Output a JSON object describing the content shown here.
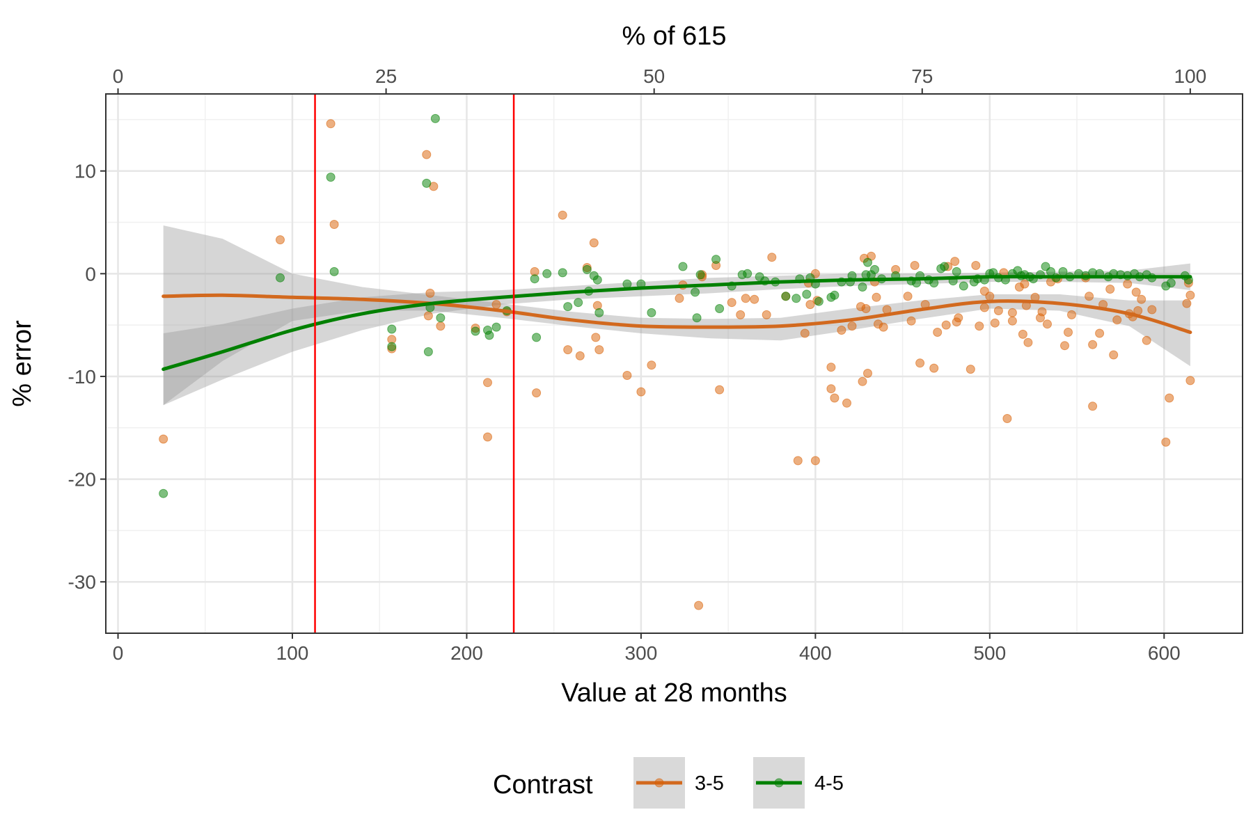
{
  "chart_data": {
    "type": "scatter",
    "xlabel": "Value at 28 months",
    "x2label": "% of 615",
    "ylabel": "% error",
    "xlim": [
      -7,
      645
    ],
    "ylim": [
      -35,
      17.5
    ],
    "x_ticks": [
      0,
      100,
      200,
      300,
      400,
      500,
      600
    ],
    "x_tick_labels": [
      "0",
      "100",
      "200",
      "300",
      "400",
      "500",
      "600"
    ],
    "x2_ticks": [
      0,
      25,
      50,
      75,
      100
    ],
    "x2_tick_labels": [
      "0",
      "25",
      "50",
      "75",
      "100"
    ],
    "x2_max_value": 615,
    "y_ticks": [
      10,
      0,
      -10,
      -20,
      -30
    ],
    "y_tick_labels": [
      "10",
      "0",
      "-10",
      "-20",
      "-30"
    ],
    "grid": true,
    "vlines": [
      113,
      227
    ],
    "vline_color": "#ff0000",
    "legend": {
      "title": "Contrast",
      "position": "bottom"
    },
    "series": [
      {
        "name": "3-5",
        "color": "#d95f02",
        "points": [
          [
            26,
            -16.1
          ],
          [
            93,
            3.3
          ],
          [
            122,
            14.6
          ],
          [
            124,
            4.8
          ],
          [
            157,
            -6.4
          ],
          [
            157,
            -7.3
          ],
          [
            177,
            11.6
          ],
          [
            178,
            -4.1
          ],
          [
            179,
            -1.9
          ],
          [
            181,
            8.5
          ],
          [
            185,
            -5.1
          ],
          [
            205,
            -5.3
          ],
          [
            212,
            -10.6
          ],
          [
            212,
            -15.9
          ],
          [
            217,
            -3.0
          ],
          [
            223,
            -3.7
          ],
          [
            239,
            0.2
          ],
          [
            240,
            -11.6
          ],
          [
            255,
            5.7
          ],
          [
            258,
            -7.4
          ],
          [
            265,
            -8.0
          ],
          [
            269,
            0.6
          ],
          [
            273,
            3.0
          ],
          [
            274,
            -6.2
          ],
          [
            275,
            -3.1
          ],
          [
            276,
            -7.4
          ],
          [
            292,
            -9.9
          ],
          [
            300,
            -11.5
          ],
          [
            306,
            -8.9
          ],
          [
            322,
            -2.4
          ],
          [
            324,
            -1.1
          ],
          [
            333,
            -32.3
          ],
          [
            335,
            -0.3
          ],
          [
            335,
            -0.1
          ],
          [
            343,
            0.8
          ],
          [
            345,
            -11.3
          ],
          [
            352,
            -2.8
          ],
          [
            357,
            -4.0
          ],
          [
            360,
            -2.4
          ],
          [
            365,
            -2.5
          ],
          [
            372,
            -4.0
          ],
          [
            375,
            1.6
          ],
          [
            383,
            -2.2
          ],
          [
            390,
            -18.2
          ],
          [
            394,
            -5.8
          ],
          [
            396,
            -0.9
          ],
          [
            397,
            -3.0
          ],
          [
            400,
            -18.2
          ],
          [
            400,
            0.0
          ],
          [
            401,
            -2.6
          ],
          [
            409,
            -9.1
          ],
          [
            409,
            -11.2
          ],
          [
            411,
            -12.1
          ],
          [
            415,
            -5.5
          ],
          [
            418,
            -12.6
          ],
          [
            421,
            -5.1
          ],
          [
            426,
            -3.2
          ],
          [
            427,
            -10.5
          ],
          [
            428,
            1.5
          ],
          [
            429,
            -3.4
          ],
          [
            430,
            -9.7
          ],
          [
            432,
            1.7
          ],
          [
            434,
            -0.8
          ],
          [
            435,
            -2.3
          ],
          [
            436,
            -4.9
          ],
          [
            439,
            -5.2
          ],
          [
            441,
            -3.5
          ],
          [
            446,
            0.4
          ],
          [
            453,
            -2.2
          ],
          [
            455,
            -4.6
          ],
          [
            457,
            0.8
          ],
          [
            460,
            -8.7
          ],
          [
            463,
            -3.0
          ],
          [
            468,
            -9.2
          ],
          [
            470,
            -5.7
          ],
          [
            475,
            -5.0
          ],
          [
            476,
            0.7
          ],
          [
            480,
            1.2
          ],
          [
            481,
            -4.7
          ],
          [
            482,
            -4.3
          ],
          [
            489,
            -9.3
          ],
          [
            492,
            0.8
          ],
          [
            494,
            -5.1
          ],
          [
            497,
            -1.7
          ],
          [
            497,
            -3.3
          ],
          [
            500,
            -2.2
          ],
          [
            503,
            -4.8
          ],
          [
            505,
            -3.6
          ],
          [
            508,
            0.1
          ],
          [
            510,
            -14.1
          ],
          [
            513,
            -4.6
          ],
          [
            513,
            -3.8
          ],
          [
            517,
            -1.3
          ],
          [
            519,
            -5.9
          ],
          [
            520,
            -1.0
          ],
          [
            521,
            -3.1
          ],
          [
            522,
            -6.7
          ],
          [
            526,
            -2.3
          ],
          [
            529,
            -4.3
          ],
          [
            530,
            -3.7
          ],
          [
            533,
            -4.9
          ],
          [
            535,
            -0.8
          ],
          [
            539,
            -0.5
          ],
          [
            543,
            -7.0
          ],
          [
            545,
            -5.7
          ],
          [
            547,
            -4.0
          ],
          [
            555,
            -0.4
          ],
          [
            557,
            -2.2
          ],
          [
            559,
            -6.9
          ],
          [
            559,
            -12.9
          ],
          [
            563,
            -5.8
          ],
          [
            565,
            -3.0
          ],
          [
            569,
            -1.5
          ],
          [
            571,
            -7.9
          ],
          [
            573,
            -4.5
          ],
          [
            579,
            -1.0
          ],
          [
            580,
            -3.9
          ],
          [
            582,
            -4.2
          ],
          [
            584,
            -1.8
          ],
          [
            585,
            -3.6
          ],
          [
            587,
            -2.5
          ],
          [
            590,
            -6.5
          ],
          [
            593,
            -3.5
          ],
          [
            601,
            -16.4
          ],
          [
            603,
            -12.1
          ],
          [
            613,
            -2.9
          ],
          [
            614,
            -0.9
          ],
          [
            615,
            -10.4
          ],
          [
            615,
            -2.1
          ]
        ]
      },
      {
        "name": "4-5",
        "color": "#008000",
        "points": [
          [
            26,
            -21.4
          ],
          [
            93,
            -0.4
          ],
          [
            122,
            9.4
          ],
          [
            124,
            0.2
          ],
          [
            157,
            -5.4
          ],
          [
            157,
            -7.1
          ],
          [
            177,
            8.8
          ],
          [
            178,
            -7.6
          ],
          [
            179,
            -3.3
          ],
          [
            182,
            15.1
          ],
          [
            185,
            -4.3
          ],
          [
            205,
            -5.6
          ],
          [
            212,
            -5.5
          ],
          [
            213,
            -6.0
          ],
          [
            217,
            -5.2
          ],
          [
            223,
            -3.6
          ],
          [
            239,
            -0.5
          ],
          [
            240,
            -6.2
          ],
          [
            246,
            0.0
          ],
          [
            255,
            0.1
          ],
          [
            258,
            -3.2
          ],
          [
            264,
            -2.8
          ],
          [
            269,
            0.4
          ],
          [
            270,
            -1.7
          ],
          [
            273,
            -0.2
          ],
          [
            275,
            -0.6
          ],
          [
            276,
            -3.8
          ],
          [
            292,
            -1.0
          ],
          [
            300,
            -1.0
          ],
          [
            306,
            -3.8
          ],
          [
            324,
            0.7
          ],
          [
            331,
            -1.8
          ],
          [
            332,
            -4.3
          ],
          [
            334,
            -0.1
          ],
          [
            343,
            1.4
          ],
          [
            345,
            -3.4
          ],
          [
            352,
            -1.2
          ],
          [
            358,
            -0.1
          ],
          [
            361,
            0.0
          ],
          [
            368,
            -0.3
          ],
          [
            371,
            -0.7
          ],
          [
            377,
            -0.8
          ],
          [
            383,
            -2.2
          ],
          [
            389,
            -2.4
          ],
          [
            391,
            -0.5
          ],
          [
            395,
            -2.0
          ],
          [
            397,
            -0.4
          ],
          [
            400,
            -1.0
          ],
          [
            402,
            -2.7
          ],
          [
            409,
            -2.3
          ],
          [
            411,
            -2.1
          ],
          [
            415,
            -0.8
          ],
          [
            420,
            -0.8
          ],
          [
            421,
            -0.2
          ],
          [
            427,
            -1.3
          ],
          [
            429,
            -0.1
          ],
          [
            430,
            1.1
          ],
          [
            432,
            -0.1
          ],
          [
            434,
            0.4
          ],
          [
            438,
            -0.5
          ],
          [
            446,
            -0.2
          ],
          [
            455,
            -0.7
          ],
          [
            458,
            -0.9
          ],
          [
            460,
            -0.2
          ],
          [
            465,
            -0.6
          ],
          [
            468,
            -0.9
          ],
          [
            472,
            0.5
          ],
          [
            474,
            0.7
          ],
          [
            479,
            -0.7
          ],
          [
            481,
            0.2
          ],
          [
            485,
            -1.2
          ],
          [
            491,
            -0.8
          ],
          [
            493,
            -0.5
          ],
          [
            497,
            -0.6
          ],
          [
            500,
            0.0
          ],
          [
            502,
            0.1
          ],
          [
            505,
            -0.4
          ],
          [
            509,
            -0.6
          ],
          [
            513,
            0.0
          ],
          [
            516,
            0.3
          ],
          [
            518,
            -0.2
          ],
          [
            520,
            -0.1
          ],
          [
            523,
            -0.3
          ],
          [
            525,
            -0.5
          ],
          [
            529,
            -0.1
          ],
          [
            532,
            0.7
          ],
          [
            535,
            0.2
          ],
          [
            538,
            -0.4
          ],
          [
            542,
            0.2
          ],
          [
            546,
            -0.3
          ],
          [
            551,
            0.0
          ],
          [
            555,
            -0.2
          ],
          [
            559,
            0.1
          ],
          [
            563,
            0.0
          ],
          [
            568,
            -0.3
          ],
          [
            571,
            0.0
          ],
          [
            575,
            -0.1
          ],
          [
            579,
            -0.2
          ],
          [
            583,
            0.0
          ],
          [
            586,
            -0.3
          ],
          [
            590,
            -0.1
          ],
          [
            593,
            -0.4
          ],
          [
            601,
            -1.2
          ],
          [
            604,
            -0.9
          ],
          [
            612,
            -0.2
          ],
          [
            614,
            -0.6
          ]
        ]
      }
    ],
    "smooth": [
      {
        "name": "3-5",
        "color": "#d2691e",
        "x": [
          26,
          60,
          100,
          140,
          180,
          220,
          260,
          300,
          340,
          380,
          420,
          460,
          500,
          540,
          580,
          615
        ],
        "y": [
          -2.2,
          -2.1,
          -2.3,
          -2.5,
          -2.9,
          -3.6,
          -4.5,
          -5.1,
          -5.2,
          -5.1,
          -4.5,
          -3.5,
          -2.7,
          -2.9,
          -3.9,
          -5.7
        ],
        "lower": [
          -12.8,
          -8.5,
          -4.6,
          -3.6,
          -3.6,
          -4.3,
          -5.1,
          -5.8,
          -6.3,
          -6.5,
          -5.5,
          -4.4,
          -3.4,
          -3.6,
          -5.1,
          -9.0
        ],
        "upper": [
          4.7,
          3.4,
          0.0,
          -1.3,
          -2.1,
          -2.9,
          -3.7,
          -4.3,
          -4.4,
          -4.3,
          -3.4,
          -2.6,
          -2.0,
          -2.0,
          -2.6,
          -2.6
        ]
      },
      {
        "name": "4-5",
        "color": "#008000",
        "x": [
          26,
          60,
          100,
          140,
          180,
          220,
          260,
          300,
          340,
          380,
          420,
          460,
          500,
          540,
          580,
          615
        ],
        "y": [
          -9.3,
          -7.6,
          -5.5,
          -3.9,
          -2.9,
          -2.3,
          -1.8,
          -1.4,
          -1.1,
          -0.8,
          -0.6,
          -0.5,
          -0.3,
          -0.3,
          -0.3,
          -0.3
        ],
        "lower": [
          -12.8,
          -10.3,
          -7.6,
          -5.5,
          -3.9,
          -3.0,
          -2.5,
          -2.2,
          -1.9,
          -1.5,
          -1.2,
          -1.0,
          -0.8,
          -0.8,
          -0.9,
          -1.6
        ],
        "upper": [
          -5.8,
          -4.9,
          -3.4,
          -2.3,
          -1.8,
          -1.6,
          -1.2,
          -0.8,
          -0.4,
          -0.2,
          0.0,
          0.0,
          0.1,
          0.2,
          0.3,
          1.0
        ]
      }
    ]
  }
}
